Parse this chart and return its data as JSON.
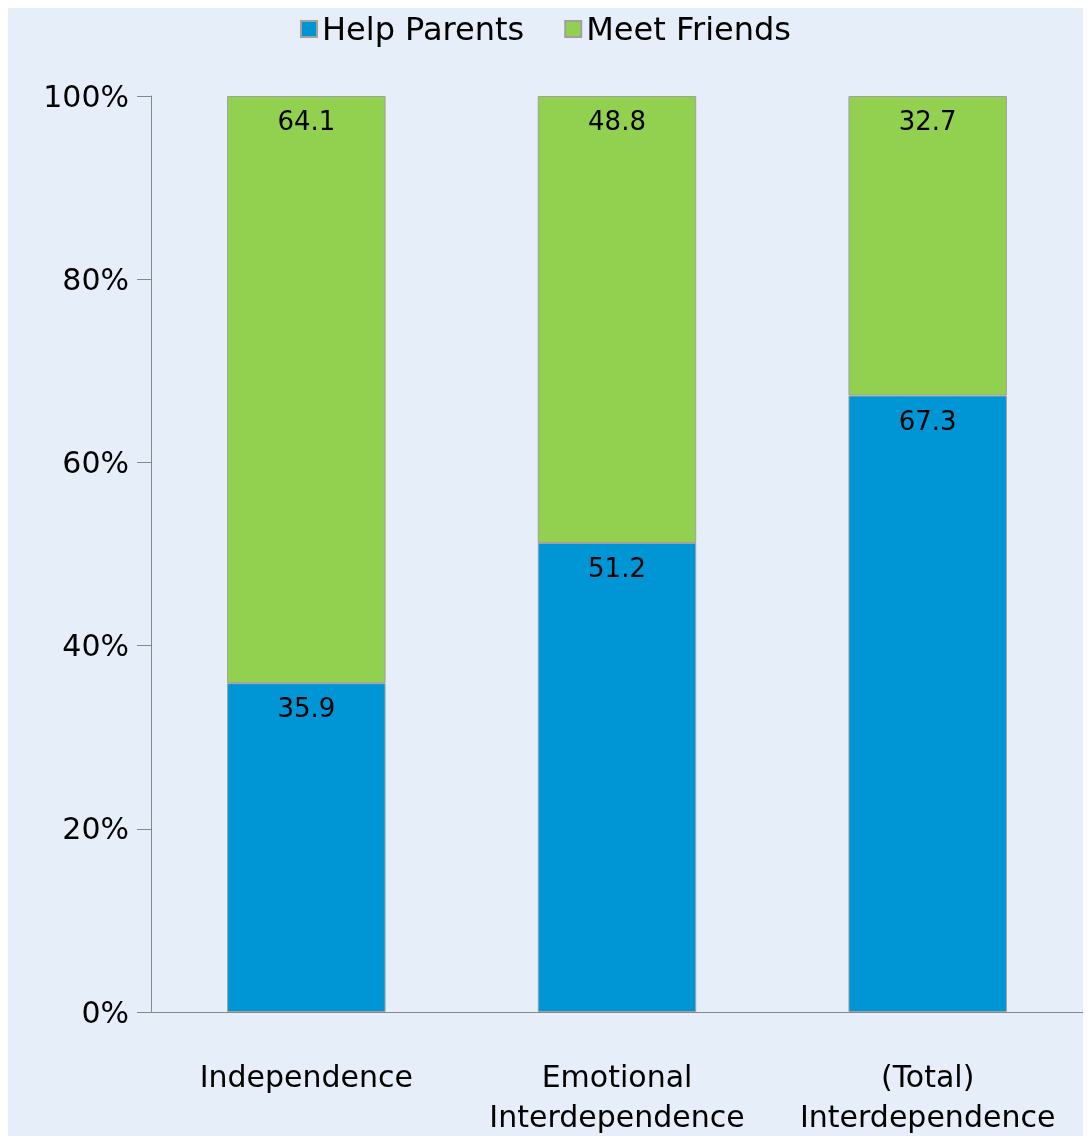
{
  "chart_data": {
    "type": "bar",
    "stacked": true,
    "categories": [
      "Independence",
      "Emotional\nInterdependence",
      "(Total)\nInterdependence"
    ],
    "series": [
      {
        "name": "Help Parents",
        "color": "#0096d6",
        "values": [
          35.9,
          51.2,
          67.3
        ]
      },
      {
        "name": "Meet Friends",
        "color": "#92d050",
        "values": [
          64.1,
          48.8,
          32.7
        ]
      }
    ],
    "ylim": [
      0,
      100
    ],
    "yticks": [
      {
        "value": 0,
        "label": "0%"
      },
      {
        "value": 20,
        "label": "20%"
      },
      {
        "value": 40,
        "label": "40%"
      },
      {
        "value": 60,
        "label": "60%"
      },
      {
        "value": 80,
        "label": "80%"
      },
      {
        "value": 100,
        "label": "100%"
      }
    ],
    "data_labels": true,
    "legend": "top",
    "grid": false
  }
}
